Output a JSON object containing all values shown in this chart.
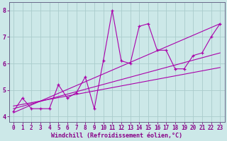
{
  "xlabel": "Windchill (Refroidissement éolien,°C)",
  "background_color": "#cce8e8",
  "grid_color": "#aacccc",
  "line_color": "#aa00aa",
  "x_data": [
    0,
    1,
    2,
    3,
    4,
    5,
    6,
    7,
    8,
    9,
    10,
    11,
    12,
    13,
    14,
    15,
    16,
    17,
    18,
    19,
    20,
    21,
    22,
    23
  ],
  "y_main": [
    4.2,
    4.7,
    4.3,
    4.3,
    4.3,
    5.2,
    4.7,
    4.9,
    5.5,
    4.3,
    6.1,
    8.0,
    6.1,
    6.0,
    7.4,
    7.5,
    6.5,
    6.5,
    5.8,
    5.8,
    6.3,
    6.4,
    7.0,
    7.5
  ],
  "reg_lines": [
    {
      "x_start": 0,
      "y_start": 4.15,
      "x_end": 23,
      "y_end": 7.5
    },
    {
      "x_start": 0,
      "y_start": 4.3,
      "x_end": 23,
      "y_end": 6.4
    },
    {
      "x_start": 0,
      "y_start": 4.4,
      "x_end": 23,
      "y_end": 5.85
    }
  ],
  "ylim": [
    3.8,
    8.3
  ],
  "xlim": [
    -0.5,
    23.5
  ],
  "yticks": [
    4,
    5,
    6,
    7,
    8
  ],
  "xticks": [
    0,
    1,
    2,
    3,
    4,
    5,
    6,
    7,
    8,
    9,
    10,
    11,
    12,
    13,
    14,
    15,
    16,
    17,
    18,
    19,
    20,
    21,
    22,
    23
  ],
  "tick_color": "#880088",
  "spine_color": "#666688",
  "label_fontsize": 5.5,
  "tick_fontsize": 5.5
}
